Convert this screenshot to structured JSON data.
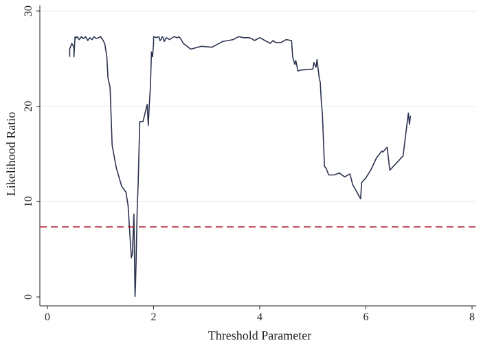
{
  "chart_data": {
    "type": "line",
    "title": "",
    "xlabel": "Threshold Parameter",
    "ylabel": "Likelihood Ratio",
    "xlim": [
      0,
      8
    ],
    "ylim": [
      0,
      30
    ],
    "xticks": [
      0,
      2,
      4,
      6,
      8
    ],
    "yticks": [
      0,
      10,
      20,
      30
    ],
    "grid": "horizontal",
    "legend": "none",
    "colors": {
      "line": "#2b3350",
      "reference": "#b22234",
      "grid": "#e6ebf0"
    },
    "reference_line": {
      "y": 7.35,
      "style": "dashed"
    },
    "series": [
      {
        "name": "",
        "x": [
          0.42,
          0.42,
          0.46,
          0.5,
          0.5,
          0.52,
          0.52,
          0.56,
          0.6,
          0.64,
          0.68,
          0.72,
          0.76,
          0.8,
          0.84,
          0.88,
          0.92,
          0.96,
          1.0,
          1.04,
          1.08,
          1.12,
          1.14,
          1.18,
          1.22,
          1.3,
          1.4,
          1.48,
          1.52,
          1.56,
          1.58,
          1.6,
          1.63,
          1.65,
          1.66,
          1.67,
          1.69,
          1.71,
          1.74,
          1.78,
          1.8,
          1.88,
          1.9,
          1.92,
          1.94,
          1.96,
          1.98,
          2.0,
          2.0,
          2.02,
          2.05,
          2.1,
          2.12,
          2.14,
          2.16,
          2.18,
          2.2,
          2.24,
          2.3,
          2.38,
          2.45,
          2.48,
          2.52,
          2.56,
          2.7,
          2.9,
          3.1,
          3.3,
          3.5,
          3.6,
          3.7,
          3.8,
          3.85,
          3.9,
          4.0,
          4.1,
          4.2,
          4.25,
          4.3,
          4.4,
          4.5,
          4.6,
          4.62,
          4.66,
          4.68,
          4.72,
          4.76,
          5.0,
          5.02,
          5.06,
          5.08,
          5.12,
          5.14,
          5.16,
          5.18,
          5.22,
          5.25,
          5.3,
          5.4,
          5.5,
          5.6,
          5.7,
          5.75,
          5.9,
          5.92,
          6.0,
          6.1,
          6.2,
          6.3,
          6.32,
          6.4,
          6.45,
          6.55,
          6.7,
          6.8,
          6.82,
          6.84
        ],
        "y": [
          25.2,
          26.0,
          26.6,
          26.2,
          25.2,
          27.3,
          27.1,
          27.3,
          27.0,
          27.3,
          27.1,
          27.3,
          26.9,
          27.2,
          27.0,
          27.3,
          27.1,
          27.2,
          27.3,
          27.0,
          26.6,
          25.2,
          23.0,
          22.0,
          15.9,
          13.5,
          11.6,
          11.0,
          9.6,
          6.0,
          4.1,
          4.5,
          8.7,
          0.05,
          1.2,
          3.5,
          9.0,
          12.0,
          18.4,
          18.4,
          18.4,
          20.2,
          18.0,
          20.2,
          22.0,
          25.7,
          25.2,
          26.6,
          27.3,
          27.3,
          27.2,
          27.3,
          26.9,
          27.0,
          27.3,
          27.2,
          26.8,
          27.2,
          27.0,
          27.3,
          27.2,
          27.3,
          27.0,
          26.6,
          26.0,
          26.3,
          26.2,
          26.8,
          27.0,
          27.3,
          27.2,
          27.2,
          27.1,
          26.9,
          27.2,
          26.9,
          26.6,
          26.9,
          26.7,
          26.7,
          27.0,
          26.9,
          25.2,
          24.4,
          24.8,
          23.7,
          23.8,
          23.9,
          24.6,
          24.1,
          24.9,
          23.0,
          22.5,
          20.5,
          19.2,
          13.7,
          13.5,
          12.8,
          12.8,
          13.0,
          12.6,
          12.9,
          11.8,
          10.3,
          12.0,
          12.5,
          13.4,
          14.6,
          15.3,
          15.2,
          15.7,
          13.3,
          13.9,
          14.8,
          19.3,
          18.1,
          19.0
        ]
      }
    ]
  }
}
